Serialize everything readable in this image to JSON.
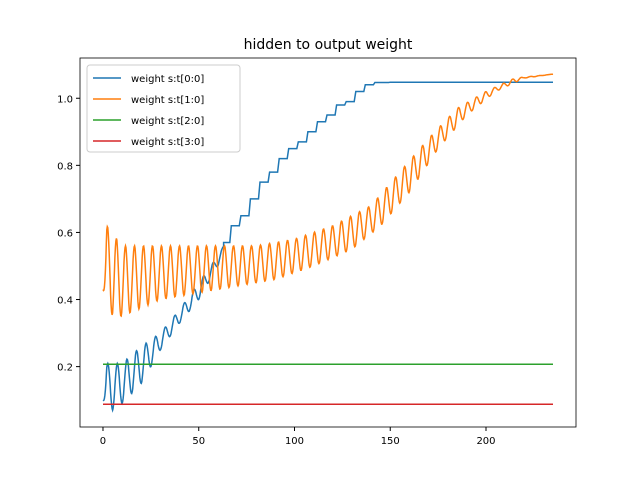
{
  "chart_data": {
    "type": "line",
    "title": "hidden to output weight",
    "xlabel": "",
    "ylabel": "",
    "xlim": [
      -12,
      247
    ],
    "ylim": [
      0.02,
      1.12
    ],
    "xticks": [
      0,
      50,
      100,
      150,
      200
    ],
    "yticks": [
      0.2,
      0.4,
      0.6,
      0.8,
      1.0
    ],
    "ytick_labels": [
      "0.2",
      "0.4",
      "0.6",
      "0.8",
      "1.0"
    ],
    "legend_placement": "upper-left",
    "series": [
      {
        "name": "weight s:t[0:0]",
        "color": "#1f77b4",
        "oscillation_period": 5,
        "lower_envelope": [
          [
            0,
            0.1
          ],
          [
            5,
            0.07
          ],
          [
            10,
            0.09
          ],
          [
            20,
            0.15
          ],
          [
            30,
            0.25
          ],
          [
            40,
            0.33
          ],
          [
            50,
            0.4
          ],
          [
            60,
            0.5
          ],
          [
            63,
            0.55
          ]
        ],
        "upper_envelope": [
          [
            0,
            0.1
          ],
          [
            2,
            0.21
          ],
          [
            10,
            0.21
          ],
          [
            20,
            0.26
          ],
          [
            30,
            0.3
          ],
          [
            40,
            0.37
          ],
          [
            50,
            0.45
          ],
          [
            60,
            0.53
          ],
          [
            63,
            0.56
          ]
        ],
        "steps": [
          [
            63,
            0.57
          ],
          [
            67,
            0.62
          ],
          [
            72,
            0.65
          ],
          [
            77,
            0.7
          ],
          [
            82,
            0.75
          ],
          [
            87,
            0.78
          ],
          [
            92,
            0.82
          ],
          [
            97,
            0.85
          ],
          [
            102,
            0.87
          ],
          [
            107,
            0.9
          ],
          [
            112,
            0.93
          ],
          [
            117,
            0.95
          ],
          [
            122,
            0.98
          ],
          [
            127,
            0.99
          ],
          [
            132,
            1.02
          ],
          [
            137,
            1.04
          ],
          [
            142,
            1.047
          ],
          [
            150,
            1.048
          ],
          [
            235,
            1.048
          ]
        ]
      },
      {
        "name": "weight s:t[1:0]",
        "color": "#ff7f0e",
        "oscillation_period": 4.7,
        "lower_envelope": [
          [
            0,
            0.43
          ],
          [
            5,
            0.35
          ],
          [
            10,
            0.35
          ],
          [
            30,
            0.4
          ],
          [
            60,
            0.43
          ],
          [
            90,
            0.46
          ],
          [
            110,
            0.5
          ],
          [
            130,
            0.55
          ],
          [
            145,
            0.62
          ],
          [
            160,
            0.72
          ],
          [
            175,
            0.85
          ],
          [
            190,
            0.95
          ],
          [
            205,
            1.02
          ],
          [
            220,
            1.06
          ],
          [
            235,
            1.072
          ]
        ],
        "upper_envelope": [
          [
            0,
            0.43
          ],
          [
            2,
            0.62
          ],
          [
            10,
            0.56
          ],
          [
            80,
            0.56
          ],
          [
            100,
            0.58
          ],
          [
            120,
            0.62
          ],
          [
            140,
            0.68
          ],
          [
            155,
            0.78
          ],
          [
            170,
            0.88
          ],
          [
            185,
            0.97
          ],
          [
            200,
            1.02
          ],
          [
            215,
            1.06
          ],
          [
            235,
            1.072
          ]
        ]
      },
      {
        "name": "weight s:t[2:0]",
        "color": "#2ca02c",
        "constant": 0.207,
        "x_range": [
          0,
          235
        ]
      },
      {
        "name": "weight s:t[3:0]",
        "color": "#d62728",
        "constant": 0.088,
        "x_range": [
          0,
          235
        ]
      }
    ]
  }
}
